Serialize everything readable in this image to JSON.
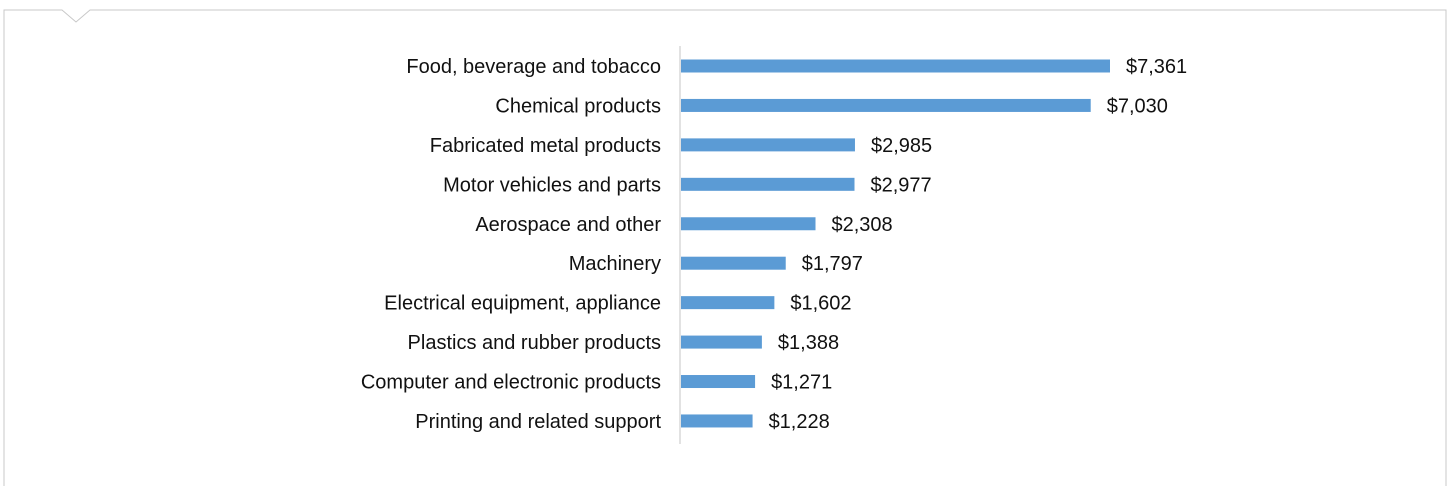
{
  "chart_data": {
    "type": "bar",
    "orientation": "horizontal",
    "categories": [
      "Food, beverage and tobacco",
      "Chemical products",
      "Fabricated metal products",
      "Motor vehicles and parts",
      "Aerospace and other",
      "Machinery",
      "Electrical equipment, appliance",
      "Plastics and rubber products",
      "Computer and electronic products",
      "Printing and related support"
    ],
    "values": [
      7361,
      7030,
      2985,
      2977,
      2308,
      1797,
      1602,
      1388,
      1271,
      1228
    ],
    "value_labels": [
      "$7,361",
      "$7,030",
      "$2,985",
      "$2,977",
      "$2,308",
      "$1,797",
      "$1,602",
      "$1,388",
      "$1,271",
      "$1,228"
    ],
    "title": "",
    "xlabel": "",
    "ylabel": "",
    "xlim": [
      0,
      7361
    ],
    "grid": false,
    "legend": "none",
    "bar_color": "#5b9bd5"
  },
  "colors": {
    "frame": "#c8c8c8",
    "axis": "#d9d9d9",
    "text": "#111111"
  }
}
